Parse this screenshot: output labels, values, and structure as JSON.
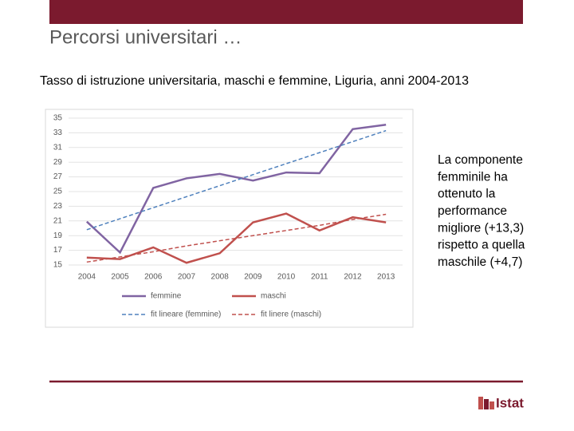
{
  "slide": {
    "title": "Percorsi universitari …",
    "note_lines": [
      "La componente",
      "femminile ha",
      "ottenuto la",
      "performance",
      "migliore (+13,3)",
      "rispetto a quella",
      "maschile (+4,7)"
    ],
    "logo": "Istat"
  },
  "chart_data": {
    "type": "line",
    "title": "Tasso di istruzione universitaria, maschi e femmine, Liguria, anni 2004-2013",
    "categories": [
      "2004",
      "2005",
      "2006",
      "2007",
      "2008",
      "2009",
      "2010",
      "2011",
      "2012",
      "2013"
    ],
    "series": [
      {
        "name": "femmine",
        "color": "#8064a2",
        "dashed": false,
        "values": [
          20.9,
          16.7,
          25.5,
          26.8,
          27.4,
          26.5,
          27.6,
          27.5,
          33.5,
          34.1
        ]
      },
      {
        "name": "maschi",
        "color": "#c0504d",
        "dashed": false,
        "values": [
          16.0,
          15.8,
          17.4,
          15.3,
          16.6,
          20.8,
          22.0,
          19.7,
          21.5,
          20.8
        ]
      },
      {
        "name": "fit lineare (femmine)",
        "color": "#4f81bd",
        "dashed": true,
        "values": [
          19.8,
          21.3,
          22.8,
          24.3,
          25.8,
          27.3,
          28.8,
          30.3,
          31.8,
          33.3
        ]
      },
      {
        "name": "fit linere (maschi)",
        "color": "#c0504d",
        "dashed": true,
        "values": [
          15.4,
          16.1,
          16.8,
          17.6,
          18.3,
          19.0,
          19.7,
          20.4,
          21.2,
          21.9
        ]
      }
    ],
    "ylim": [
      15,
      35
    ],
    "yticks": [
      15,
      17,
      19,
      21,
      23,
      25,
      27,
      29,
      31,
      33,
      35
    ],
    "grid": true
  }
}
